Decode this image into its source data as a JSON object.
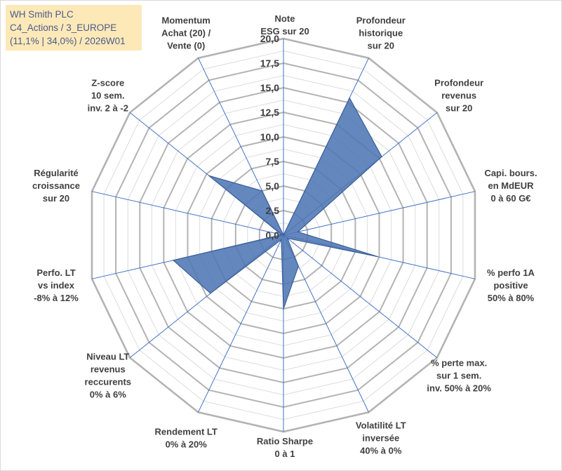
{
  "title_box": {
    "line1": "WH Smith PLC",
    "line2": "C4_Actions / 3_EUROPE",
    "line3": "(11,1% | 34,0%) / 2026W01"
  },
  "chart_data": {
    "type": "radar",
    "r_range": [
      0,
      20
    ],
    "grid": true,
    "tick_labels": [
      "0,0",
      "2,5",
      "5,0",
      "7,5",
      "10,0",
      "12,5",
      "15,0",
      "17,5",
      "20,0"
    ],
    "axes": [
      [
        "Note",
        "ESG sur 20"
      ],
      [
        "Profondeur",
        "historique",
        "sur 20"
      ],
      [
        "Profondeur",
        "revenus",
        "sur 20"
      ],
      [
        "Capi. bours.",
        "en MdEUR",
        "0 à 60 G€"
      ],
      [
        "% perfo 1A",
        "positive",
        "50% à 80%"
      ],
      [
        "% perte max.",
        "sur 1 sem.",
        "inv. 50% à 20%"
      ],
      [
        "Volatilité LT",
        "inversée",
        "40% à 0%"
      ],
      [
        "Ratio Sharpe",
        "0 à 1"
      ],
      [
        "Rendement LT",
        "0% à 20%"
      ],
      [
        "Niveau LT",
        "revenus",
        "reccurents",
        "0% à 6%"
      ],
      [
        "Perfo. LT",
        "vs index",
        "-8% à 12%"
      ],
      [
        "Régularité",
        "croissance",
        "sur 20"
      ],
      [
        "Z-score",
        "10 sem.",
        "inv. 2 à -2"
      ],
      [
        "Momentum",
        "Achat (20) /",
        "Vente (0)"
      ]
    ],
    "values": [
      0,
      15.5,
      12.8,
      1.5,
      9.8,
      0.5,
      3.5,
      7.5,
      0.5,
      9.5,
      11.5,
      0.2,
      9.7,
      5.0
    ],
    "colors": {
      "fill": "#4f76b4",
      "stroke": "#3b5f98",
      "spoke": "#4472c4",
      "ring": "#b8b8b8"
    }
  }
}
